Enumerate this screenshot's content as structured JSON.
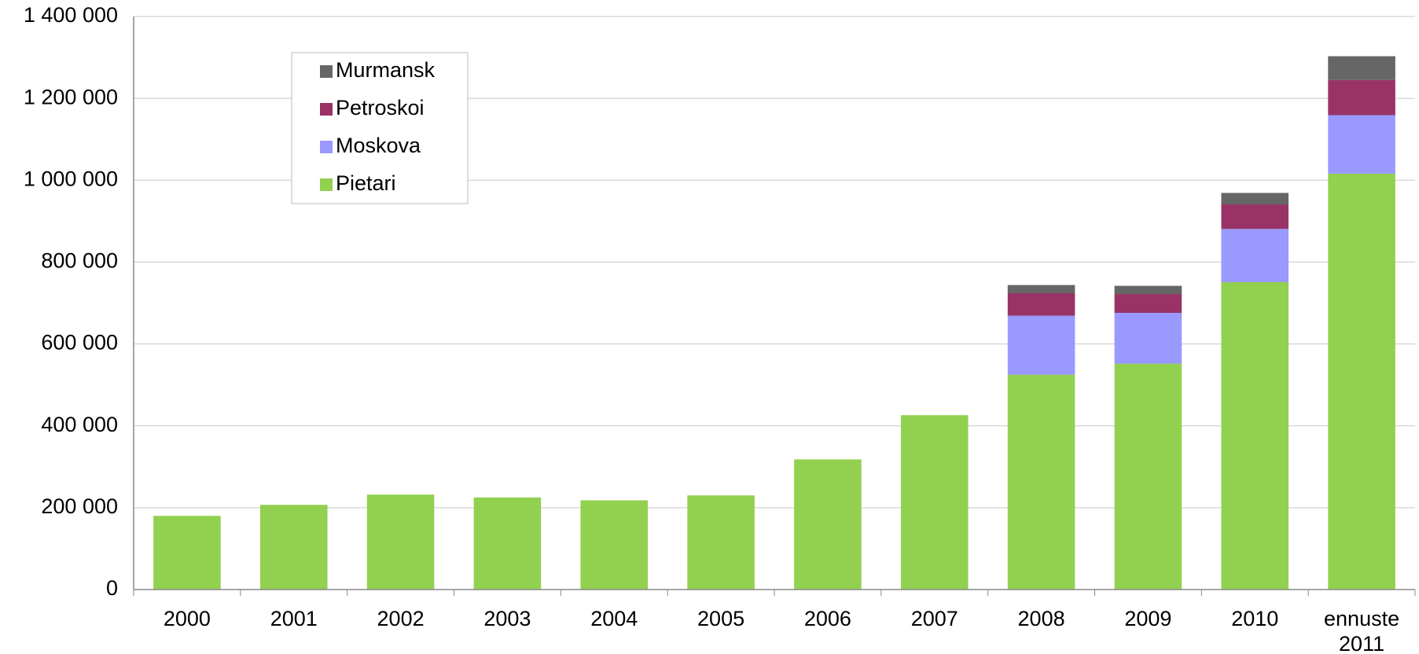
{
  "chart_data": {
    "type": "stacked_bar",
    "categories": [
      "2000",
      "2001",
      "2002",
      "2003",
      "2004",
      "2005",
      "2006",
      "2007",
      "2008",
      "2009",
      "2010",
      "ennuste 2011"
    ],
    "series": [
      {
        "name": "Pietari",
        "color": "#92d050",
        "values": [
          180000,
          207000,
          232000,
          225000,
          218000,
          230000,
          318000,
          426000,
          525000,
          552000,
          751000,
          1016000
        ]
      },
      {
        "name": "Moskova",
        "color": "#9999ff",
        "values": [
          null,
          null,
          null,
          null,
          null,
          null,
          null,
          null,
          144000,
          124000,
          130000,
          143000
        ]
      },
      {
        "name": "Petroskoi",
        "color": "#993366",
        "values": [
          null,
          null,
          null,
          null,
          null,
          null,
          null,
          null,
          55000,
          46000,
          60000,
          86000
        ]
      },
      {
        "name": "Murmansk",
        "color": "#666666",
        "values": [
          null,
          null,
          null,
          null,
          null,
          null,
          null,
          null,
          20000,
          20000,
          28000,
          58000
        ]
      }
    ],
    "ylim": [
      0,
      1400000
    ],
    "yticks": [
      0,
      {
        "value": 200000,
        "label": "200 000"
      },
      {
        "value": 400000,
        "label": "400 000"
      },
      {
        "value": 600000,
        "label": "600 000"
      },
      {
        "value": 800000,
        "label": "800 000"
      },
      {
        "value": 1000000,
        "label": "1 000 000"
      },
      {
        "value": 1200000,
        "label": "1 200 000"
      },
      {
        "value": 1400000,
        "label": "1 400 000"
      }
    ],
    "grid": true,
    "legend": "upper-left"
  }
}
